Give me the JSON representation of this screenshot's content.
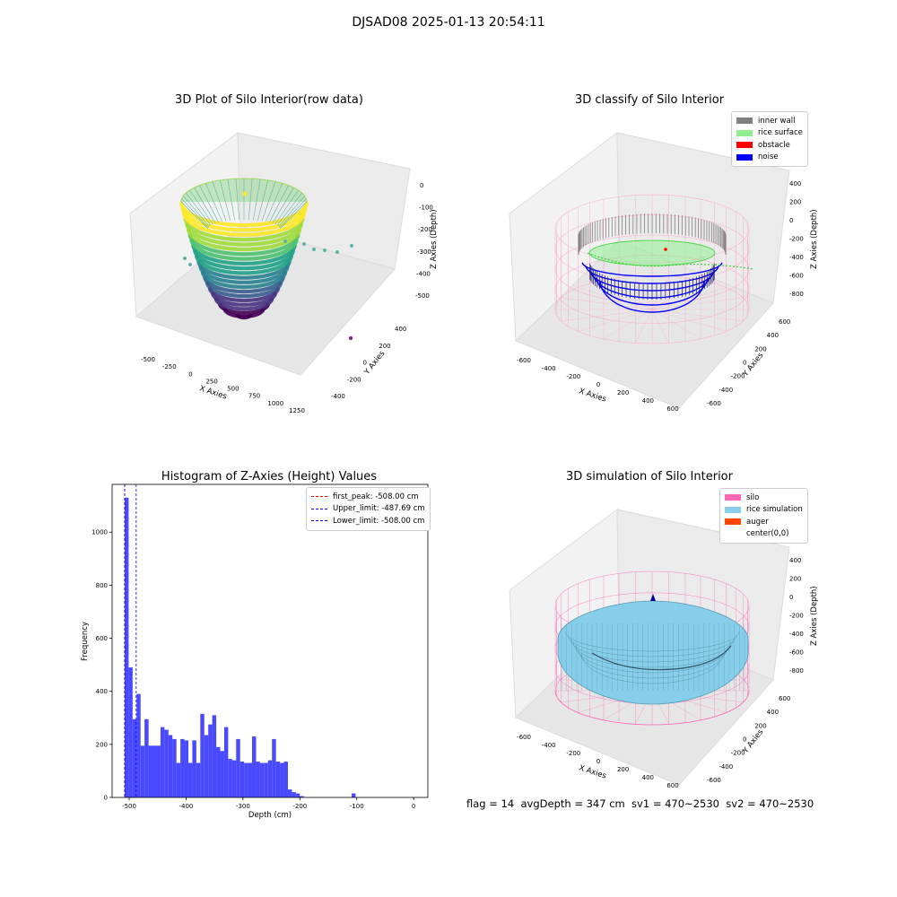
{
  "figure": {
    "suptitle": "DJSAD08 2025-01-13 20:54:11",
    "footer": "flag = 14  avgDepth = 347 cm  sv1 = 470~2530  sv2 = 470~2530"
  },
  "colors": {
    "bars": "#3a3aff",
    "inner_wall": "#808080",
    "rice_surface": "#90ee90",
    "obstacle": "#ff0000",
    "noise": "#0000ff",
    "silo": "#ff69b4",
    "rice_simulation": "#87ceeb",
    "auger": "#ff4500"
  },
  "chart_data": [
    {
      "type": "scatter",
      "subtype": "3d",
      "title": "3D Plot of Silo Interior(row data)",
      "xlabel": "X Axies",
      "ylabel": "Y Axies",
      "zlabel": "Z Axies (Depth)",
      "xticks": [
        "-500",
        "-250",
        "0",
        "250",
        "500",
        "750",
        "1000",
        "1250"
      ],
      "yticks": [
        "-400",
        "-200",
        "0",
        "200",
        "400"
      ],
      "zticks": [
        "0",
        "-100",
        "-200",
        "-300",
        "-400",
        "-500"
      ],
      "colormap": "viridis",
      "zlim": [
        -530,
        0
      ]
    },
    {
      "type": "scatter",
      "subtype": "3d",
      "title": "3D classify of Silo Interior",
      "xlabel": "X Axies",
      "ylabel": "Y Axies",
      "zlabel": "Z Axies (Depth)",
      "xticks": [
        "-600",
        "-400",
        "-200",
        "0",
        "200",
        "400",
        "600"
      ],
      "yticks": [
        "-600",
        "-400",
        "-200",
        "0",
        "200",
        "400",
        "600"
      ],
      "zticks": [
        "400",
        "200",
        "0",
        "-200",
        "-400",
        "-600",
        "-800"
      ],
      "legend": [
        "inner wall",
        "rice surface",
        "obstacle",
        "noise"
      ],
      "legend_loc": "upper right"
    },
    {
      "type": "bar",
      "subtype": "histogram",
      "title": "Histogram of Z-Axies (Height) Values",
      "xlabel": "Depth (cm)",
      "ylabel": "Frequency",
      "xlim": [
        -530,
        25
      ],
      "ylim": [
        0,
        1180
      ],
      "xticks": [
        -500,
        -400,
        -300,
        -200,
        -100,
        0
      ],
      "yticks": [
        0,
        200,
        400,
        600,
        800,
        1000
      ],
      "bin_start": -508,
      "bin_width": 7,
      "values": [
        1130,
        490,
        295,
        390,
        195,
        295,
        195,
        195,
        195,
        265,
        255,
        235,
        220,
        130,
        220,
        215,
        130,
        215,
        130,
        315,
        235,
        275,
        310,
        190,
        175,
        265,
        145,
        140,
        220,
        135,
        130,
        130,
        230,
        135,
        130,
        130,
        140,
        220,
        135,
        130,
        135,
        30,
        20,
        15,
        5,
        0,
        0,
        0,
        0,
        0,
        0,
        0,
        0,
        0,
        0,
        0,
        0,
        15
      ],
      "lines": [
        {
          "label": "first_peak: -508.00 cm",
          "x": -508,
          "color": "#ff0000"
        },
        {
          "label": "Upper_limit: -487.69 cm",
          "x": -487.69,
          "color": "#0000ff"
        },
        {
          "label": "Lower_limit: -508.00 cm",
          "x": -508,
          "color": "#0000ff"
        }
      ],
      "legend_loc": "upper right"
    },
    {
      "type": "scatter",
      "subtype": "3d-surface",
      "title": "3D simulation of Silo Interior",
      "xlabel": "X Axies",
      "ylabel": "Y Axies",
      "zlabel": "Z Axies (Depth)",
      "xticks": [
        "-600",
        "-400",
        "-200",
        "0",
        "200",
        "400",
        "600"
      ],
      "yticks": [
        "-600",
        "-400",
        "-200",
        "0",
        "200",
        "400",
        "600"
      ],
      "zticks": [
        "400",
        "200",
        "0",
        "-200",
        "-400",
        "-600",
        "-800"
      ],
      "legend": [
        "silo",
        "rice simulation",
        "auger",
        "center(0,0)"
      ],
      "legend_loc": "upper right"
    }
  ]
}
